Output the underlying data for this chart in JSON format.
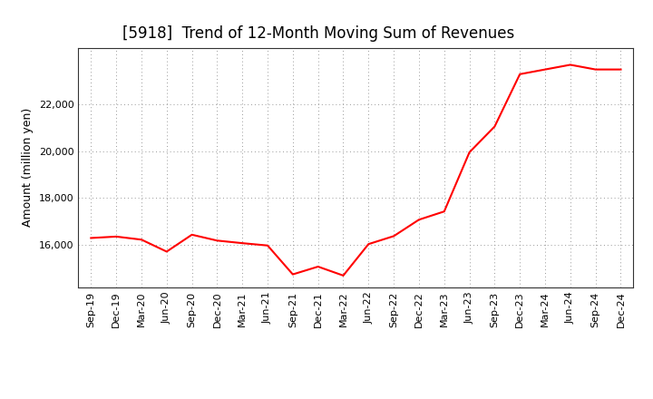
{
  "title": "[5918]  Trend of 12-Month Moving Sum of Revenues",
  "ylabel": "Amount (million yen)",
  "line_color": "#FF0000",
  "line_width": 1.5,
  "background_color": "#FFFFFF",
  "grid_color": "#999999",
  "ylim": [
    14200,
    24400
  ],
  "yticks": [
    16000,
    18000,
    20000,
    22000
  ],
  "x_labels": [
    "Sep-19",
    "Dec-19",
    "Mar-20",
    "Jun-20",
    "Sep-20",
    "Dec-20",
    "Mar-21",
    "Jun-21",
    "Sep-21",
    "Dec-21",
    "Mar-22",
    "Jun-22",
    "Sep-22",
    "Dec-22",
    "Mar-23",
    "Jun-23",
    "Sep-23",
    "Dec-23",
    "Mar-24",
    "Jun-24",
    "Sep-24",
    "Dec-24"
  ],
  "values": [
    16300,
    16360,
    16230,
    15720,
    16440,
    16190,
    16080,
    15980,
    14750,
    15080,
    14700,
    16040,
    16380,
    17080,
    17430,
    19950,
    21050,
    23280,
    23480,
    23680,
    23480,
    23480
  ],
  "title_fontsize": 12,
  "tick_fontsize": 8,
  "ylabel_fontsize": 9
}
